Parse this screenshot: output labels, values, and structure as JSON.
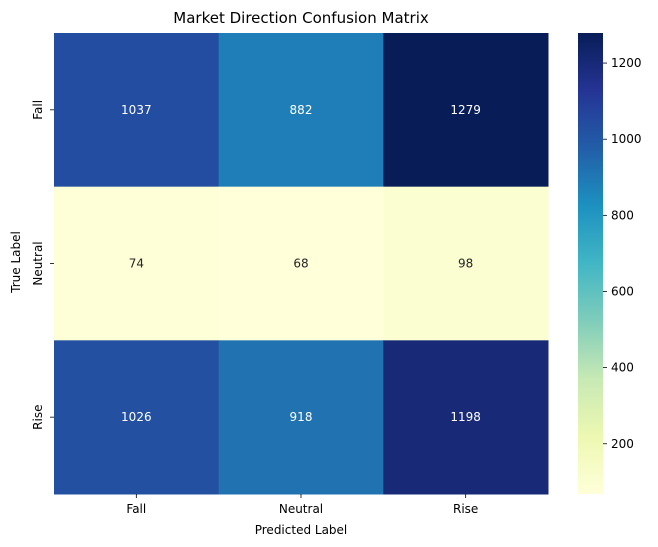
{
  "chart_data": {
    "type": "heatmap",
    "title": "Market Direction Confusion Matrix",
    "xlabel": "Predicted Label",
    "ylabel": "True Label",
    "x_categories": [
      "Fall",
      "Neutral",
      "Rise"
    ],
    "y_categories": [
      "Fall",
      "Neutral",
      "Rise"
    ],
    "values": [
      [
        1037,
        882,
        1279
      ],
      [
        74,
        68,
        98
      ],
      [
        1026,
        918,
        1198
      ]
    ],
    "colormap": "YlGnBu",
    "colorbar": {
      "min": 68,
      "max": 1279,
      "ticks": [
        200,
        400,
        600,
        800,
        1000,
        1200
      ],
      "tick_labels": [
        "200",
        "400",
        "600",
        "800",
        "1000",
        "1200"
      ]
    },
    "colors": {
      "low": "#ffffd9",
      "high": "#081d58"
    }
  }
}
